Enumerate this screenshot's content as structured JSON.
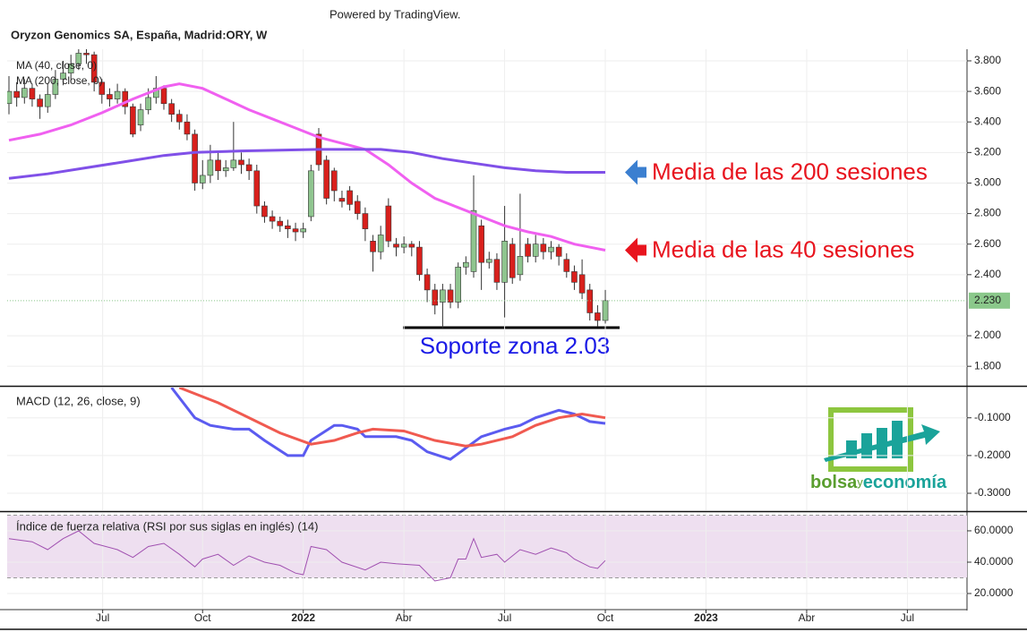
{
  "powered_by": "Powered by TradingView.",
  "logo": {
    "parts": [
      "bolsa",
      "y",
      "economía"
    ]
  },
  "chart_data": [
    {
      "type": "candlestick",
      "title": "Oryzon Genomics SA, España, Madrid:ORY, W",
      "up_color": "#8fc58f",
      "down_color": "#d8201c",
      "open": [
        3.52,
        3.6,
        3.56,
        3.62,
        3.55,
        3.5,
        3.58,
        3.68,
        3.72,
        3.78,
        3.85,
        3.84,
        3.66,
        3.58,
        3.55,
        3.6,
        3.5,
        3.38,
        3.48,
        3.56,
        3.62,
        3.52,
        3.45,
        3.4,
        3.32,
        3.0,
        3.05,
        3.15,
        3.08,
        3.1,
        3.15,
        3.12,
        3.08,
        2.85,
        2.78,
        2.75,
        2.72,
        2.7,
        2.68,
        2.78,
        3.32,
        3.15,
        3.08,
        2.9,
        2.95,
        2.88,
        2.8,
        2.62,
        2.55,
        2.85,
        2.6,
        2.58,
        2.6,
        2.58,
        2.4,
        2.3,
        2.22,
        2.3,
        2.22,
        2.45,
        2.42,
        2.72,
        2.48,
        2.5,
        2.35,
        2.6,
        2.4,
        2.6,
        2.52,
        2.6,
        2.55,
        2.58,
        2.5,
        2.42,
        2.4,
        2.3,
        2.15,
        2.1
      ],
      "high": [
        3.7,
        3.66,
        3.68,
        3.65,
        3.58,
        3.65,
        3.74,
        3.8,
        3.84,
        3.9,
        3.9,
        3.86,
        3.68,
        3.62,
        3.65,
        3.62,
        3.52,
        3.52,
        3.62,
        3.7,
        3.64,
        3.55,
        3.48,
        3.45,
        3.35,
        3.15,
        3.25,
        3.2,
        3.15,
        3.4,
        3.2,
        3.16,
        3.12,
        2.88,
        2.82,
        2.78,
        2.76,
        2.74,
        2.74,
        3.12,
        3.36,
        3.18,
        3.1,
        2.95,
        2.98,
        2.92,
        2.84,
        2.66,
        2.72,
        2.9,
        2.64,
        2.65,
        2.62,
        2.62,
        2.44,
        2.34,
        2.34,
        2.34,
        2.48,
        2.52,
        3.05,
        2.76,
        2.55,
        2.54,
        2.85,
        2.64,
        2.93,
        2.64,
        2.66,
        2.64,
        2.62,
        2.6,
        2.54,
        2.46,
        2.5,
        2.34,
        2.2,
        2.3
      ],
      "low": [
        3.45,
        3.5,
        3.52,
        3.5,
        3.42,
        3.46,
        3.55,
        3.64,
        3.68,
        3.74,
        3.78,
        3.6,
        3.52,
        3.5,
        3.52,
        3.45,
        3.3,
        3.34,
        3.45,
        3.52,
        3.48,
        3.4,
        3.35,
        3.28,
        2.95,
        2.96,
        3.0,
        3.02,
        3.04,
        3.08,
        3.06,
        3.02,
        2.8,
        2.74,
        2.7,
        2.68,
        2.64,
        2.62,
        2.64,
        2.75,
        3.08,
        2.86,
        2.88,
        2.84,
        2.82,
        2.76,
        2.62,
        2.42,
        2.5,
        2.58,
        2.52,
        2.54,
        2.52,
        2.36,
        2.22,
        2.14,
        2.05,
        2.18,
        2.18,
        2.4,
        2.38,
        2.3,
        2.44,
        2.3,
        2.12,
        2.34,
        2.36,
        2.48,
        2.48,
        2.5,
        2.5,
        2.46,
        2.38,
        2.3,
        2.24,
        2.1,
        2.06,
        2.08
      ],
      "close": [
        3.6,
        3.56,
        3.62,
        3.55,
        3.5,
        3.58,
        3.68,
        3.72,
        3.78,
        3.85,
        3.84,
        3.66,
        3.58,
        3.55,
        3.6,
        3.5,
        3.32,
        3.48,
        3.56,
        3.62,
        3.52,
        3.45,
        3.4,
        3.32,
        3.0,
        3.05,
        3.15,
        3.08,
        3.1,
        3.15,
        3.12,
        3.08,
        2.85,
        2.78,
        2.75,
        2.72,
        2.7,
        2.68,
        2.7,
        3.08,
        3.12,
        2.9,
        2.95,
        2.88,
        2.86,
        2.8,
        2.7,
        2.55,
        2.66,
        2.62,
        2.58,
        2.6,
        2.58,
        2.4,
        2.3,
        2.2,
        2.3,
        2.22,
        2.45,
        2.48,
        2.82,
        2.48,
        2.5,
        2.35,
        2.62,
        2.38,
        2.52,
        2.52,
        2.6,
        2.55,
        2.58,
        2.52,
        2.42,
        2.35,
        2.28,
        2.15,
        2.1,
        2.23
      ],
      "series": [
        {
          "name": "MA (40, close, 0)",
          "color": "#f060f0",
          "annotation": "Media de las 40 sesiones",
          "arrow_color": "#e8141e",
          "x": [
            0,
            4,
            8,
            12,
            16,
            20,
            22,
            25,
            28,
            31,
            34,
            37,
            40,
            43,
            46,
            49,
            52,
            55,
            58,
            61,
            64,
            67,
            70,
            73,
            76,
            77
          ],
          "values": [
            3.28,
            3.32,
            3.38,
            3.46,
            3.55,
            3.63,
            3.65,
            3.62,
            3.55,
            3.48,
            3.42,
            3.36,
            3.3,
            3.26,
            3.22,
            3.12,
            3.0,
            2.9,
            2.84,
            2.78,
            2.72,
            2.68,
            2.65,
            2.6,
            2.57,
            2.56
          ]
        },
        {
          "name": "MA (200, close, 0)",
          "color": "#8050e8",
          "annotation": "Media de las 200 sesiones",
          "arrow_color": "#3b7fd0",
          "x": [
            0,
            5,
            10,
            15,
            20,
            24,
            30,
            40,
            48,
            52,
            56,
            60,
            64,
            68,
            72,
            77
          ],
          "values": [
            3.03,
            3.06,
            3.1,
            3.14,
            3.18,
            3.2,
            3.21,
            3.22,
            3.22,
            3.2,
            3.16,
            3.13,
            3.1,
            3.08,
            3.07,
            3.07
          ]
        }
      ],
      "last_price": {
        "value": 2.23,
        "label": "2.230"
      },
      "support_label": "Soporte zona 2.03",
      "ylim": [
        1.678,
        3.876
      ],
      "yticks": [
        {
          "value": 3.8,
          "label": "3.800"
        },
        {
          "value": 3.6,
          "label": "3.600"
        },
        {
          "value": 3.4,
          "label": "3.400"
        },
        {
          "value": 3.2,
          "label": "3.200"
        },
        {
          "value": 3.0,
          "label": "3.000"
        },
        {
          "value": 2.8,
          "label": "2.800"
        },
        {
          "value": 2.6,
          "label": "2.600"
        },
        {
          "value": 2.4,
          "label": "2.400"
        },
        {
          "value": 2.0,
          "label": "2.000"
        },
        {
          "value": 1.8,
          "label": "1.800"
        }
      ],
      "grid": true
    },
    {
      "type": "line",
      "title": "MACD (12, 26, close, 9)",
      "series": [
        {
          "color": "#5b5bf0",
          "x": [
            21,
            24,
            26,
            29,
            31,
            33,
            36,
            38,
            39,
            42,
            43,
            45,
            46,
            50,
            52,
            54,
            57,
            59,
            61,
            64,
            66,
            68,
            71,
            73,
            75,
            77
          ],
          "values": [
            -0.02,
            -0.1,
            -0.12,
            -0.13,
            -0.13,
            -0.16,
            -0.2,
            -0.2,
            -0.16,
            -0.12,
            -0.12,
            -0.13,
            -0.15,
            -0.15,
            -0.16,
            -0.19,
            -0.21,
            -0.18,
            -0.15,
            -0.13,
            -0.12,
            -0.1,
            -0.08,
            -0.09,
            -0.11,
            -0.115
          ]
        },
        {
          "color": "#f05a50",
          "x": [
            22,
            27,
            30,
            35,
            39,
            42,
            45,
            47,
            51,
            55,
            59,
            61,
            65,
            68,
            71,
            74,
            77
          ],
          "values": [
            -0.02,
            -0.06,
            -0.09,
            -0.14,
            -0.17,
            -0.16,
            -0.14,
            -0.13,
            -0.135,
            -0.16,
            -0.175,
            -0.17,
            -0.15,
            -0.12,
            -0.1,
            -0.09,
            -0.1
          ]
        }
      ],
      "ylim": [
        -0.345,
        -0.02
      ],
      "yticks": [
        {
          "value": -0.1,
          "label": "-0.1000"
        },
        {
          "value": -0.2,
          "label": "-0.2000"
        },
        {
          "value": -0.3,
          "label": "-0.3000"
        }
      ],
      "grid": true
    },
    {
      "type": "line",
      "title": "Índice de fuerza relativa (RSI por sus siglas en inglés) (14)",
      "band": [
        30,
        70
      ],
      "band_color": "#eedff0",
      "series": [
        {
          "color": "#a050b0",
          "x": [
            0,
            3,
            5,
            7,
            9,
            11,
            14,
            16,
            18,
            20,
            22,
            24,
            25,
            27,
            29,
            31,
            33,
            35,
            37,
            38,
            39,
            41,
            43,
            46,
            48,
            50,
            53,
            55,
            57,
            58,
            59,
            60,
            61,
            63,
            64,
            66,
            68,
            70,
            72,
            73,
            75,
            76,
            77
          ],
          "values": [
            55,
            53,
            48,
            55,
            60,
            52,
            48,
            43,
            50,
            52,
            45,
            37,
            42,
            45,
            38,
            44,
            40,
            38,
            33,
            32,
            50,
            48,
            40,
            35,
            40,
            39,
            38,
            28,
            30,
            42,
            42,
            55,
            43,
            45,
            40,
            48,
            45,
            49,
            46,
            42,
            37,
            36,
            41
          ]
        }
      ],
      "ylim": [
        10.3,
        71.4
      ],
      "yticks": [
        {
          "value": 60,
          "label": "60.0000"
        },
        {
          "value": 40,
          "label": "40.0000"
        },
        {
          "value": 20,
          "label": "20.0000"
        }
      ],
      "xlim": [
        -0.231,
        123.7
      ],
      "xticks": [
        {
          "value": 12.1,
          "label": "Jul"
        },
        {
          "value": 25,
          "label": "Oct"
        },
        {
          "value": 38,
          "label": "2022"
        },
        {
          "value": 51,
          "label": "Abr"
        },
        {
          "value": 64,
          "label": "Jul"
        },
        {
          "value": 77,
          "label": "Oct"
        },
        {
          "value": 90,
          "label": "2023"
        },
        {
          "value": 103,
          "label": "Abr"
        },
        {
          "value": 116,
          "label": "Jul"
        }
      ],
      "grid": true
    }
  ]
}
